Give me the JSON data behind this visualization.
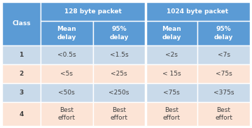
{
  "title_128": "128 byte packet",
  "title_1024": "1024 byte packet",
  "col_header_class": "Class",
  "col_headers": [
    "Mean\ndelay",
    "95%\ndelay",
    "Mean\ndelay",
    "95%\ndelay"
  ],
  "rows": [
    [
      "1",
      "<0.5s",
      "<1.5s",
      "<2s",
      "<7s"
    ],
    [
      "2",
      "<5s",
      "<25s",
      "< 15s",
      "<75s"
    ],
    [
      "3",
      "<50s",
      "<250s",
      "<75s",
      "<375s"
    ],
    [
      "4",
      "Best\neffort",
      "Best\neffort",
      "Best\neffort",
      "Best\neffort"
    ]
  ],
  "header_bg": "#5b9bd5",
  "row_bg_blue": "#c9daea",
  "row_bg_orange": "#fce4d6",
  "border_color": "#ffffff",
  "header_text_color": "#ffffff",
  "data_text_color": "#404040",
  "figwidth": 3.6,
  "figheight": 1.83,
  "dpi": 100
}
